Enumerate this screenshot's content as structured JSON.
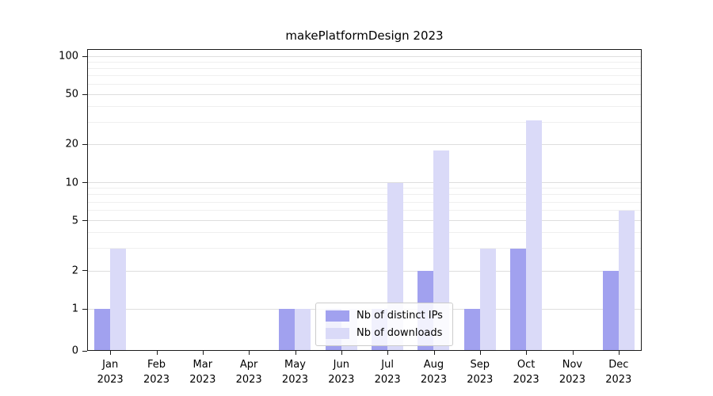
{
  "title": "makePlatformDesign 2023",
  "chart_data": {
    "type": "bar",
    "title": "makePlatformDesign 2023",
    "yscale": "symlog",
    "grid": true,
    "legend_position": "lower center",
    "ylim": [
      0,
      114
    ],
    "yticks": [
      0,
      1,
      2,
      5,
      10,
      20,
      50,
      100
    ],
    "minor_yticks": [
      3,
      4,
      6,
      7,
      8,
      9,
      30,
      40,
      60,
      70,
      80,
      90
    ],
    "categories": [
      {
        "month": "Jan",
        "year": "2023"
      },
      {
        "month": "Feb",
        "year": "2023"
      },
      {
        "month": "Mar",
        "year": "2023"
      },
      {
        "month": "Apr",
        "year": "2023"
      },
      {
        "month": "May",
        "year": "2023"
      },
      {
        "month": "Jun",
        "year": "2023"
      },
      {
        "month": "Jul",
        "year": "2023"
      },
      {
        "month": "Aug",
        "year": "2023"
      },
      {
        "month": "Sep",
        "year": "2023"
      },
      {
        "month": "Oct",
        "year": "2023"
      },
      {
        "month": "Nov",
        "year": "2023"
      },
      {
        "month": "Dec",
        "year": "2023"
      }
    ],
    "series": [
      {
        "name": "Nb of distinct IPs",
        "color": "#a1a1ef",
        "values": [
          1,
          0,
          0,
          0,
          1,
          1,
          1,
          2,
          1,
          3,
          0,
          2
        ]
      },
      {
        "name": "Nb of downloads",
        "color": "#dadaf8",
        "values": [
          3,
          0,
          0,
          0,
          1,
          1,
          10,
          18,
          3,
          31,
          0,
          6
        ]
      }
    ]
  }
}
